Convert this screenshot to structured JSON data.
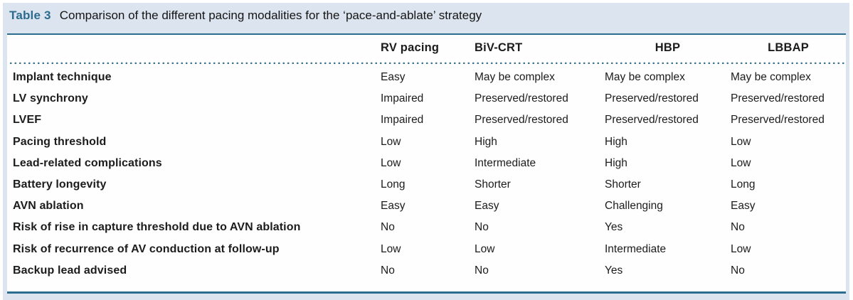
{
  "caption": {
    "label": "Table 3",
    "text": "Comparison of the different pacing modalities for the ‘pace-and-ablate’ strategy"
  },
  "table": {
    "columns": [
      "RV pacing",
      "BiV-CRT",
      "HBP",
      "LBBAP"
    ],
    "rows": [
      {
        "label": "Implant technique",
        "values": [
          "Easy",
          "May be complex",
          "May be complex",
          "May be complex"
        ]
      },
      {
        "label": "LV synchrony",
        "values": [
          "Impaired",
          "Preserved/restored",
          "Preserved/restored",
          "Preserved/restored"
        ]
      },
      {
        "label": "LVEF",
        "values": [
          "Impaired",
          "Preserved/restored",
          "Preserved/restored",
          "Preserved/restored"
        ]
      },
      {
        "label": "Pacing threshold",
        "values": [
          "Low",
          "High",
          "High",
          "Low"
        ]
      },
      {
        "label": "Lead-related complications",
        "values": [
          "Low",
          "Intermediate",
          "High",
          "Low"
        ]
      },
      {
        "label": "Battery longevity",
        "values": [
          "Long",
          "Shorter",
          "Shorter",
          "Long"
        ]
      },
      {
        "label": "AVN ablation",
        "values": [
          "Easy",
          "Easy",
          "Challenging",
          "Easy"
        ]
      },
      {
        "label": "Risk of rise in capture threshold due to AVN ablation",
        "values": [
          "No",
          "No",
          "Yes",
          "No"
        ]
      },
      {
        "label": "Risk of recurrence of AV conduction at follow-up",
        "values": [
          "Low",
          "Low",
          "Intermediate",
          "Low"
        ]
      },
      {
        "label": "Backup lead advised",
        "values": [
          "No",
          "No",
          "Yes",
          "No"
        ]
      }
    ]
  },
  "colors": {
    "accent_line": "#2b6d8f",
    "caption_label": "#2c6b8e",
    "panel_background": "#dce4ef",
    "dot_separator": "#35708e",
    "text": "#1c1c1c"
  }
}
